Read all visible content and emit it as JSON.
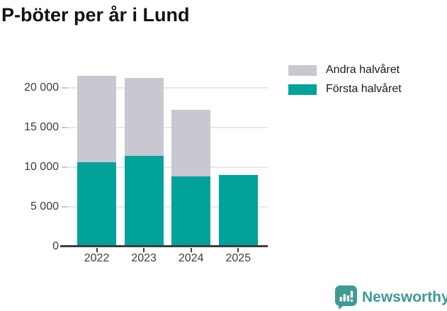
{
  "title": "P-böter per år i Lund",
  "chart_data": {
    "type": "bar",
    "stacked": true,
    "title": "P-böter per år i Lund",
    "categories": [
      "2022",
      "2023",
      "2024",
      "2025"
    ],
    "series": [
      {
        "name": "Första halvåret",
        "color": "#00a29a",
        "values": [
          10600,
          11400,
          8800,
          9000
        ]
      },
      {
        "name": "Andra halvåret",
        "color": "#c9c7cf",
        "values": [
          10900,
          9800,
          8400,
          0
        ]
      }
    ],
    "totals": [
      21500,
      21200,
      17200,
      9000
    ],
    "xlabel": "",
    "ylabel": "",
    "y_ticks": [
      0,
      5000,
      10000,
      15000,
      20000
    ],
    "y_tick_labels": [
      "0",
      "5 000",
      "10 000",
      "15 000",
      "20 000"
    ],
    "ylim": [
      0,
      22100
    ],
    "grid": "horizontal",
    "legend_position": "top-right"
  },
  "legend": {
    "items": [
      {
        "label": "Andra halvåret",
        "color": "#c9c7cf"
      },
      {
        "label": "Första halvåret",
        "color": "#00a29a"
      }
    ]
  },
  "branding": {
    "logo_text": "Newsworthy",
    "logo_color": "#3f9a93",
    "logo_icon": "bar-chart-speech-bubble"
  },
  "colors": {
    "first_half": "#00a29a",
    "second_half": "#c9c7cf",
    "axis": "#3d3d3d",
    "gridline": "#e8e7ed",
    "tick_label": "#3d3d3d",
    "title_text": "#131313"
  }
}
